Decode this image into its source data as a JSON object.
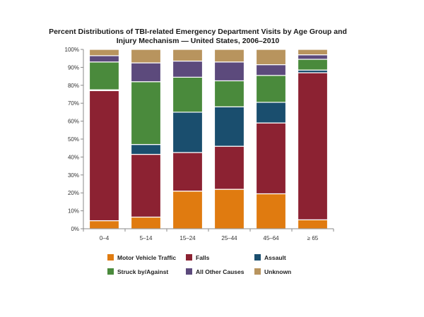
{
  "chart_data": {
    "type": "bar",
    "stacked": true,
    "title_lines": [
      "Percent Distributions of TBI-related Emergency Department Visits by Age Group and",
      "Injury Mechanism — United States, 2006–2010"
    ],
    "categories": [
      "0–4",
      "5–14",
      "15–24",
      "25–44",
      "45–64",
      "≥ 65"
    ],
    "series": [
      {
        "name": "Motor Vehicle Traffic",
        "color": "#e07b10",
        "values": [
          4.5,
          6.5,
          21,
          22,
          19.5,
          5
        ]
      },
      {
        "name": "Falls",
        "color": "#8c2232",
        "values": [
          72.5,
          35,
          21.5,
          24,
          39.5,
          82
        ]
      },
      {
        "name": "Assault",
        "color": "#1a4e6e",
        "values": [
          0.5,
          5.5,
          22.5,
          22,
          11.5,
          1.5
        ]
      },
      {
        "name": "Struck by/Against",
        "color": "#4a8a3c",
        "values": [
          15.5,
          35,
          19.5,
          14.5,
          15,
          6
        ]
      },
      {
        "name": "All Other Causes",
        "color": "#5c4a7c",
        "values": [
          3.5,
          10.5,
          9,
          10.5,
          6,
          2.5
        ]
      },
      {
        "name": "Unknown",
        "color": "#b8945e",
        "values": [
          3.5,
          7.5,
          6.5,
          7,
          8.5,
          3
        ]
      }
    ],
    "y_ticks": [
      "0%",
      "10%",
      "20%",
      "30%",
      "40%",
      "50%",
      "60%",
      "70%",
      "80%",
      "90%",
      "100%"
    ],
    "ylim": [
      0,
      100
    ],
    "grid": false,
    "legend_position": "bottom"
  }
}
